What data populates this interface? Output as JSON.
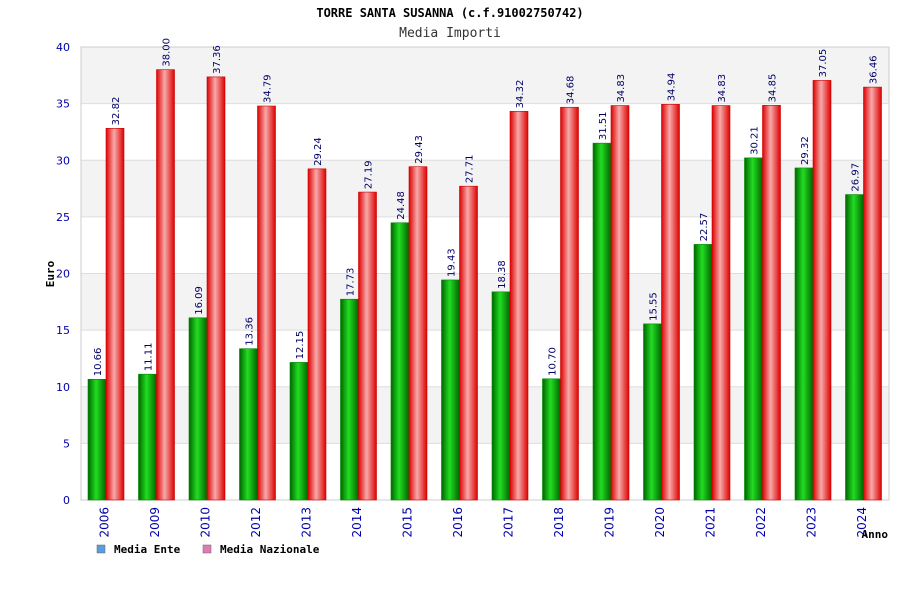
{
  "chart_data": {
    "type": "bar",
    "title": "TORRE SANTA SUSANNA (c.f.91002750742)",
    "subtitle": "Media Importi",
    "ylabel": "Euro",
    "xlabel": "Anno",
    "ylim": [
      0,
      40
    ],
    "yticks": [
      "0",
      "5",
      "10",
      "15",
      "20",
      "25",
      "30",
      "35",
      "40"
    ],
    "grid": true,
    "legend_position": "bottom-left",
    "categories": [
      "2006",
      "2009",
      "2010",
      "2012",
      "2013",
      "2014",
      "2015",
      "2016",
      "2017",
      "2018",
      "2019",
      "2020",
      "2021",
      "2022",
      "2023",
      "2024"
    ],
    "series": [
      {
        "name": "Media Ente",
        "legend_color": "#5b9be0",
        "bar_color": "#00aa00",
        "values": [
          10.66,
          11.11,
          16.09,
          13.36,
          12.15,
          17.73,
          24.48,
          19.43,
          18.38,
          10.7,
          31.51,
          15.55,
          22.57,
          30.21,
          29.32,
          26.97
        ],
        "labels": [
          "10.66",
          "11.11",
          "16.09",
          "13.36",
          "12.15",
          "17.73",
          "24.48",
          "19.43",
          "18.38",
          "10.70",
          "31.51",
          "15.55",
          "22.57",
          "30.21",
          "29.32",
          "26.97"
        ]
      },
      {
        "name": "Media Nazionale",
        "legend_color": "#e07ab0",
        "bar_color": "#ee1111",
        "values": [
          32.82,
          38.0,
          37.36,
          34.79,
          29.24,
          27.19,
          29.43,
          27.71,
          34.32,
          34.68,
          34.83,
          34.94,
          34.83,
          34.85,
          37.05,
          36.46
        ],
        "labels": [
          "32.82",
          "38.00",
          "37.36",
          "34.79",
          "29.24",
          "27.19",
          "29.43",
          "27.71",
          "34.32",
          "34.68",
          "34.83",
          "34.94",
          "34.83",
          "34.85",
          "37.05",
          "36.46"
        ]
      }
    ]
  }
}
